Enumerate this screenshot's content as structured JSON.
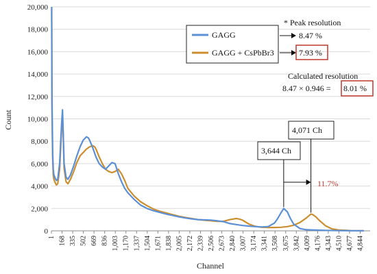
{
  "chart_data": {
    "type": "line",
    "xlabel": "Channel",
    "ylabel": "Count",
    "ylim": [
      0,
      20000
    ],
    "yticks": [
      0,
      2000,
      4000,
      6000,
      8000,
      10000,
      12000,
      14000,
      16000,
      18000,
      20000
    ],
    "ytick_labels": [
      "0",
      "2,000",
      "4,000",
      "6,000",
      "8,000",
      "10,000",
      "12,000",
      "14,000",
      "16,000",
      "18,000",
      "20,000"
    ],
    "xlim": [
      1,
      5000
    ],
    "xticks": [
      1,
      168,
      335,
      502,
      669,
      836,
      1003,
      1170,
      1337,
      1504,
      1671,
      1838,
      2005,
      2172,
      2339,
      2506,
      2673,
      2840,
      3007,
      3174,
      3341,
      3508,
      3675,
      3842,
      4009,
      4176,
      4343,
      4510,
      4677,
      4844
    ],
    "xtick_labels": [
      "1",
      "168",
      "335",
      "502",
      "669",
      "836",
      "1,003",
      "1,170",
      "1,337",
      "1,504",
      "1,671",
      "1,838",
      "2,005",
      "2,172",
      "2,339",
      "2,506",
      "2,673",
      "2,840",
      "3,007",
      "3,174",
      "3,341",
      "3,508",
      "3,675",
      "3,842",
      "4,009",
      "4,176",
      "4,343",
      "4,510",
      "4,677",
      "4,844"
    ],
    "grid": "horizontal",
    "legend_position": "top-center",
    "series": [
      {
        "name": "GAGG",
        "color": "#5b8fd6",
        "x": [
          5,
          10,
          20,
          30,
          40,
          60,
          80,
          100,
          130,
          160,
          175,
          185,
          200,
          230,
          260,
          300,
          350,
          400,
          450,
          500,
          550,
          580,
          600,
          650,
          700,
          750,
          800,
          850,
          900,
          950,
          1000,
          1050,
          1100,
          1150,
          1200,
          1300,
          1400,
          1500,
          1600,
          1700,
          1800,
          1900,
          2000,
          2100,
          2200,
          2300,
          2400,
          2500,
          2600,
          2700,
          2800,
          2900,
          3000,
          3100,
          3200,
          3300,
          3400,
          3500,
          3550,
          3600,
          3644,
          3700,
          3750,
          3800,
          3900,
          4000,
          4100,
          4200,
          4300,
          4500,
          4700,
          4900
        ],
        "y": [
          20000,
          12000,
          7000,
          5500,
          5000,
          4700,
          4500,
          4600,
          6000,
          9500,
          10800,
          9000,
          6000,
          4800,
          4600,
          5000,
          5800,
          6700,
          7500,
          8100,
          8400,
          8300,
          8100,
          7400,
          6600,
          6000,
          5700,
          5500,
          5800,
          6100,
          6000,
          5100,
          4400,
          3800,
          3400,
          2800,
          2300,
          2000,
          1800,
          1650,
          1500,
          1380,
          1250,
          1150,
          1070,
          1000,
          980,
          960,
          900,
          820,
          650,
          560,
          480,
          420,
          380,
          350,
          380,
          700,
          1100,
          1600,
          2000,
          1700,
          1100,
          600,
          200,
          100,
          80,
          60,
          40,
          20,
          10,
          5
        ]
      },
      {
        "name": "GAGG + CsPbBr3",
        "color": "#cc8e2e",
        "x": [
          5,
          10,
          20,
          30,
          40,
          60,
          80,
          100,
          130,
          160,
          175,
          185,
          200,
          230,
          260,
          300,
          350,
          400,
          450,
          500,
          550,
          600,
          650,
          680,
          700,
          750,
          800,
          850,
          900,
          950,
          1000,
          1050,
          1100,
          1150,
          1200,
          1300,
          1400,
          1500,
          1600,
          1700,
          1800,
          1900,
          2000,
          2100,
          2200,
          2300,
          2400,
          2500,
          2600,
          2700,
          2800,
          2850,
          2900,
          2950,
          3000,
          3100,
          3200,
          3300,
          3400,
          3500,
          3600,
          3700,
          3800,
          3900,
          4000,
          4050,
          4071,
          4100,
          4150,
          4200,
          4300,
          4400,
          4500,
          4700,
          4900
        ],
        "y": [
          20000,
          11000,
          6500,
          5000,
          4600,
          4300,
          4100,
          4200,
          5500,
          9000,
          10000,
          8800,
          5600,
          4400,
          4200,
          4600,
          5300,
          6100,
          6700,
          7000,
          7300,
          7500,
          7600,
          7500,
          7300,
          6600,
          6000,
          5500,
          5300,
          5200,
          5300,
          5500,
          5100,
          4500,
          3800,
          3100,
          2600,
          2250,
          1950,
          1750,
          1600,
          1450,
          1300,
          1200,
          1100,
          1000,
          950,
          900,
          850,
          850,
          1000,
          1050,
          1100,
          1050,
          950,
          600,
          400,
          320,
          300,
          300,
          320,
          380,
          500,
          750,
          1150,
          1400,
          1500,
          1450,
          1250,
          950,
          450,
          180,
          80,
          20,
          5
        ]
      }
    ],
    "annotations": {
      "peak_heading": "* Peak resolution",
      "gagg_resolution": "8.47 %",
      "cspbbr3_resolution": "7.93 %",
      "calc_heading": "Calculated resolution",
      "calc_expression": "8.47 × 0.946 =",
      "calc_result": "8.01 %",
      "peak1_label": "3,644 Ch",
      "peak2_label": "4,071 Ch",
      "shift_label": "11.7%"
    }
  }
}
